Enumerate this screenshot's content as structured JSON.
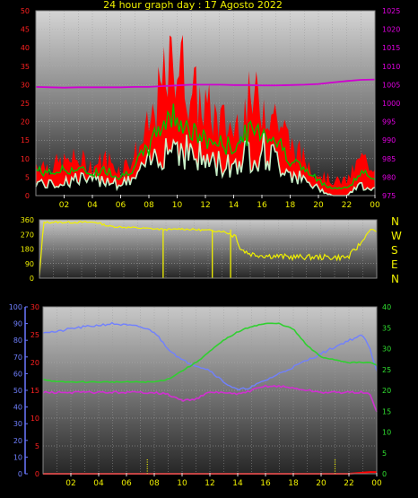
{
  "title": "24 hour graph day : 17 Agosto 2022",
  "colors": {
    "background": "#000000",
    "title": "#f0f000",
    "wind_gust": "#ff0000",
    "wind_avg": "#00c000",
    "wind_min": "#c8f0c8",
    "pressure": "#d000d0",
    "wind_dir": "#f0f000",
    "humidity": "#7080ff",
    "temperature": "#30d030",
    "dewpoint": "#d030d0",
    "rain": "#ff0000",
    "solar": "#f0f000"
  },
  "x_ticks": [
    "02",
    "04",
    "06",
    "08",
    "10",
    "12",
    "14",
    "16",
    "18",
    "20",
    "22",
    "00"
  ],
  "direction_labels": [
    "N",
    "W",
    "S",
    "E",
    "N"
  ],
  "chart_data": [
    {
      "type": "area",
      "name": "wind-chart",
      "xlim": [
        0,
        24
      ],
      "ylim": [
        0,
        50
      ],
      "y2lim": [
        975,
        1025
      ],
      "y_ticks": [
        "0",
        "5",
        "10",
        "15",
        "20",
        "25",
        "30",
        "35",
        "40",
        "45",
        "50"
      ],
      "y2_ticks": [
        "975",
        "980",
        "985",
        "990",
        "995",
        "1000",
        "1005",
        "1010",
        "1015",
        "1020",
        "1025"
      ],
      "x": [
        0,
        1,
        2,
        3,
        4,
        5,
        6,
        7,
        8,
        9,
        10,
        11,
        12,
        13,
        14,
        15,
        16,
        17,
        18,
        19,
        20,
        21,
        22,
        23,
        24
      ],
      "series": [
        {
          "key": "gust",
          "values": [
            9,
            8,
            9,
            10,
            8,
            10,
            7,
            11,
            18,
            30,
            38,
            28,
            24,
            20,
            18,
            25,
            26,
            22,
            14,
            10,
            6,
            4,
            4,
            10,
            8
          ]
        },
        {
          "key": "avg",
          "values": [
            7,
            6,
            7,
            7,
            6,
            7,
            5,
            8,
            13,
            20,
            22,
            17,
            15,
            14,
            13,
            17,
            18,
            15,
            10,
            7,
            4,
            2,
            2,
            6,
            5
          ]
        },
        {
          "key": "min",
          "values": [
            4,
            3,
            4,
            5,
            4,
            5,
            3,
            5,
            9,
            14,
            15,
            12,
            10,
            9,
            9,
            12,
            13,
            10,
            7,
            4,
            2,
            0,
            0,
            3,
            2
          ]
        },
        {
          "key": "pressure",
          "values": [
            1004.4,
            1004.3,
            1004.2,
            1004.3,
            1004.3,
            1004.3,
            1004.3,
            1004.4,
            1004.4,
            1004.6,
            1004.8,
            1005.0,
            1005.0,
            1005.0,
            1004.9,
            1004.9,
            1004.8,
            1004.8,
            1004.9,
            1005.0,
            1005.2,
            1005.6,
            1006.0,
            1006.3,
            1006.4
          ]
        }
      ]
    },
    {
      "type": "line",
      "name": "wind-direction-chart",
      "xlim": [
        0,
        24
      ],
      "ylim": [
        0,
        360
      ],
      "y_ticks": [
        "0",
        "90",
        "180",
        "270",
        "360"
      ],
      "x": [
        0.0,
        0.3,
        1,
        2,
        3,
        4,
        5,
        6,
        7,
        8,
        9,
        9.5,
        10,
        11,
        12,
        13,
        14,
        14.3,
        15,
        16,
        17,
        18,
        19,
        20,
        21,
        22,
        23,
        23.5,
        24
      ],
      "values": [
        15,
        345,
        345,
        345,
        345,
        345,
        320,
        315,
        310,
        305,
        300,
        300,
        305,
        300,
        295,
        290,
        260,
        180,
        150,
        140,
        135,
        130,
        130,
        130,
        128,
        130,
        230,
        300,
        290
      ]
    },
    {
      "type": "line",
      "name": "temperature-humidity-chart",
      "xlim": [
        0,
        24
      ],
      "ylim_humidity": [
        0,
        100
      ],
      "ylim_temperature": [
        0,
        30
      ],
      "ylim_dewpoint": [
        0,
        40
      ],
      "y_ticks_humidity": [
        "0",
        "10",
        "20",
        "30",
        "40",
        "50",
        "60",
        "70",
        "80",
        "90",
        "100"
      ],
      "y_ticks_temperature": [
        "0",
        "5",
        "10",
        "15",
        "20",
        "25",
        "30"
      ],
      "y_ticks_dewpoint": [
        "0",
        "5",
        "10",
        "15",
        "20",
        "25",
        "30",
        "35",
        "40"
      ],
      "x": [
        0,
        1,
        2,
        3,
        4,
        5,
        6,
        7,
        8,
        9,
        10,
        11,
        12,
        13,
        14,
        15,
        16,
        17,
        18,
        19,
        20,
        21,
        22,
        23,
        23.5,
        24
      ],
      "series": [
        {
          "key": "humidity",
          "values": [
            85,
            85,
            87,
            88,
            89,
            90,
            89,
            88,
            85,
            75,
            68,
            65,
            62,
            55,
            50,
            52,
            56,
            60,
            64,
            68,
            72,
            76,
            80,
            83,
            75,
            62
          ]
        },
        {
          "key": "temperature",
          "values": [
            17,
            16.5,
            16.5,
            16.5,
            16.5,
            16.5,
            16.5,
            16.5,
            16.5,
            17,
            18.5,
            20,
            22,
            24,
            25.5,
            26.5,
            27,
            27,
            26,
            23,
            21,
            20.5,
            20,
            20,
            20,
            19.5
          ]
        },
        {
          "key": "dewpoint",
          "values": [
            19.5,
            19.5,
            19.5,
            19.5,
            19.5,
            19.5,
            19.5,
            19.5,
            19.5,
            19,
            17.5,
            18,
            19.5,
            19.5,
            19,
            20,
            21,
            21,
            20.5,
            20,
            19.5,
            19.5,
            19.5,
            19.5,
            19,
            15
          ]
        },
        {
          "key": "rain",
          "values": [
            0,
            0,
            0,
            0,
            0,
            0,
            0,
            0,
            0,
            0,
            0,
            0,
            0,
            0,
            0,
            0,
            0,
            0,
            0,
            0,
            0,
            0,
            0,
            0.2,
            0.3,
            0.3
          ]
        }
      ],
      "solar_x": [
        7.5,
        21.0
      ]
    }
  ]
}
